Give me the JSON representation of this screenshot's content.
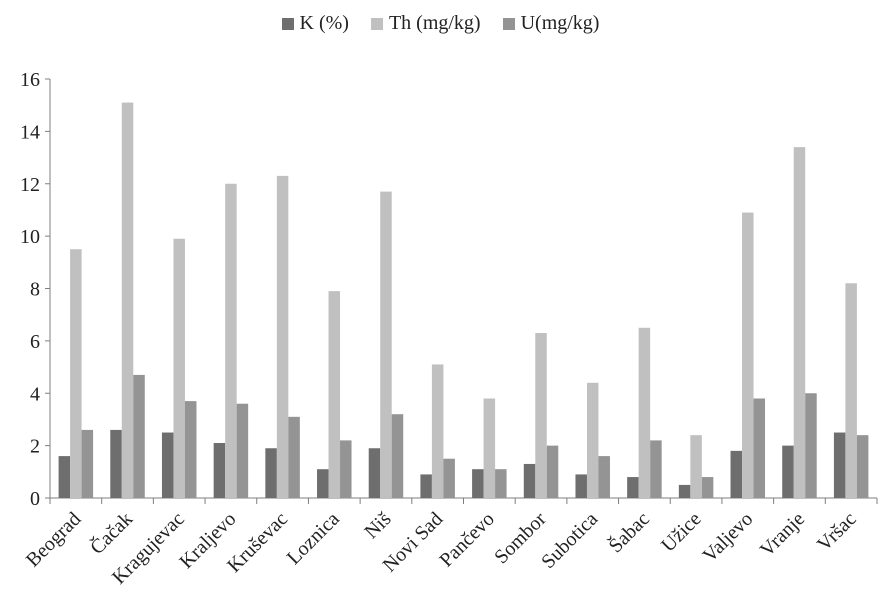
{
  "chart_data": {
    "type": "bar",
    "categories": [
      "Beograd",
      "Čačak",
      "Kragujevac",
      "Kraljevo",
      "Kruševac",
      "Loznica",
      "Niš",
      "Novi Sad",
      "Pančevo",
      "Sombor",
      "Subotica",
      "Šabac",
      "Užice",
      "Valjevo",
      "Vranje",
      "Vršac"
    ],
    "series": [
      {
        "name": "K (%)",
        "color": "#6e6e6e",
        "values": [
          1.6,
          2.6,
          2.5,
          2.1,
          1.9,
          1.1,
          1.9,
          0.9,
          1.1,
          1.3,
          0.9,
          0.8,
          0.5,
          1.8,
          2.0,
          2.5
        ]
      },
      {
        "name": "Th (mg/kg)",
        "color": "#c0c0c0",
        "values": [
          9.5,
          15.1,
          9.9,
          12.0,
          12.3,
          7.9,
          11.7,
          5.1,
          3.8,
          6.3,
          4.4,
          6.5,
          2.4,
          10.9,
          13.4,
          8.2
        ]
      },
      {
        "name": "U(mg/kg)",
        "color": "#949494",
        "values": [
          2.6,
          4.7,
          3.7,
          3.6,
          3.1,
          2.2,
          3.2,
          1.5,
          1.1,
          2.0,
          1.6,
          2.2,
          0.8,
          3.8,
          4.0,
          2.4
        ]
      }
    ],
    "ylim": [
      0,
      16
    ],
    "yticks": [
      0,
      2,
      4,
      6,
      8,
      10,
      12,
      14,
      16
    ],
    "grid": false,
    "legend_position": "top-center"
  }
}
